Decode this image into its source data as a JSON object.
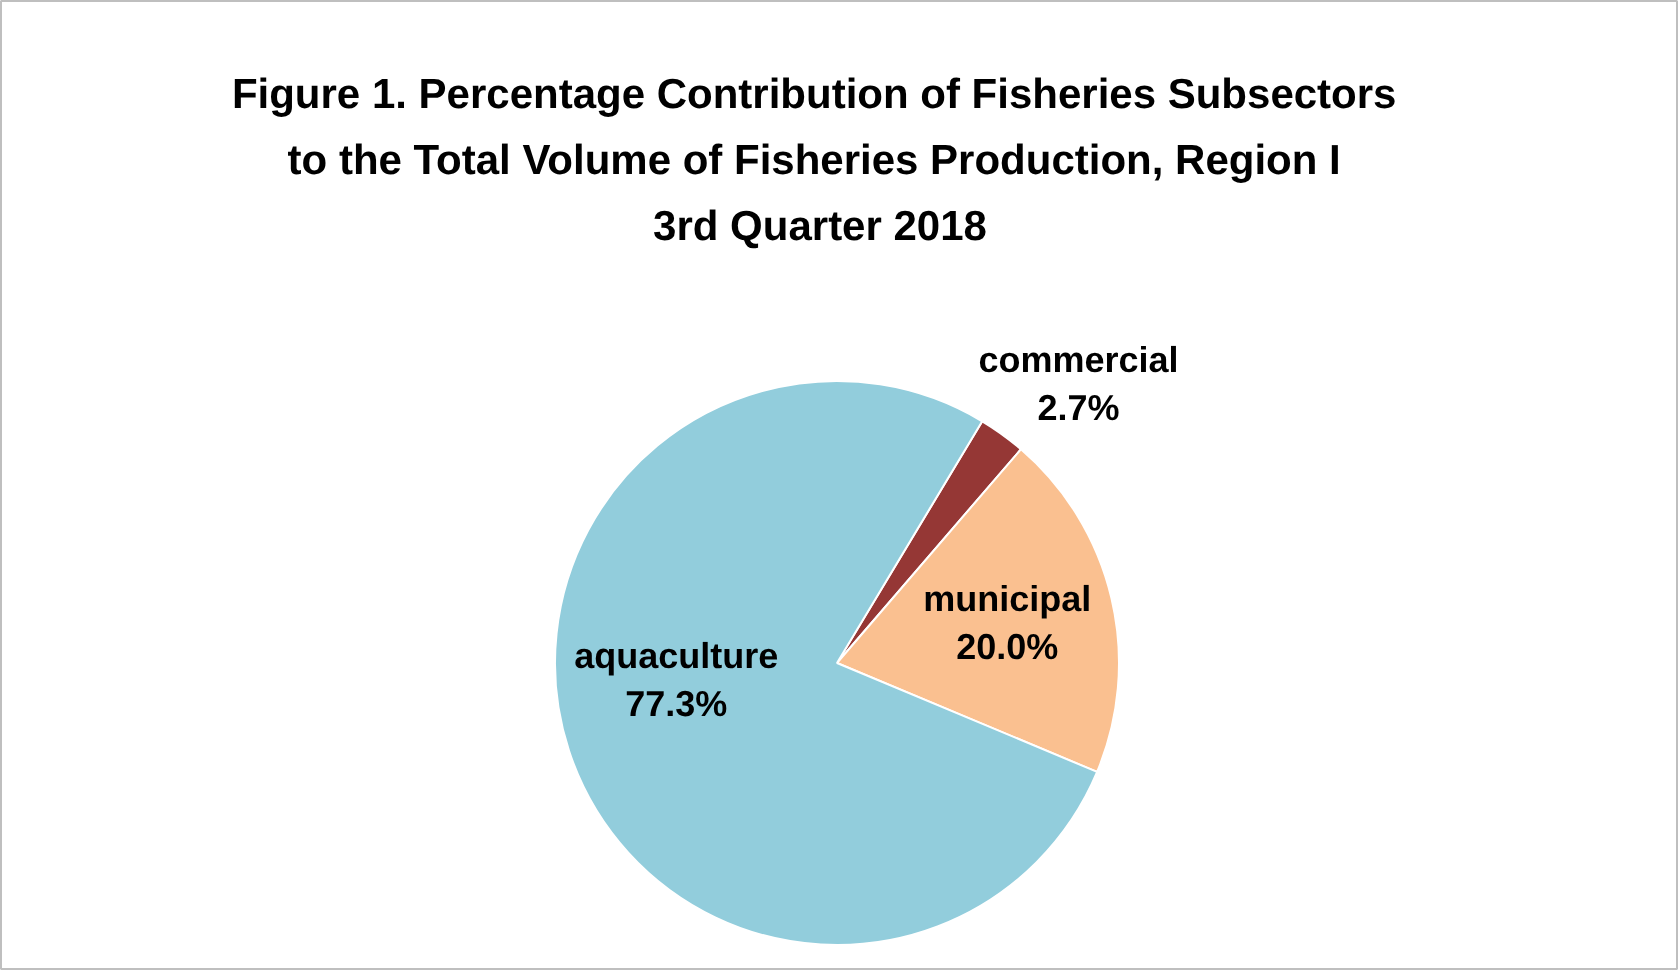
{
  "chart_data": {
    "type": "pie",
    "title": "Figure 1. Percentage Contribution  of Fisheries Subsectors\nto the Total Volume of Fisheries Production,  Region I\n3rd Quarter 2018",
    "categories": [
      "commercial",
      "municipal",
      "aquaculture"
    ],
    "values": [
      2.7,
      20.0,
      77.3
    ],
    "value_labels": [
      "2.7%",
      "20.0%",
      "77.3%"
    ],
    "colors": [
      "#953735",
      "#fac090",
      "#92cddc"
    ]
  }
}
